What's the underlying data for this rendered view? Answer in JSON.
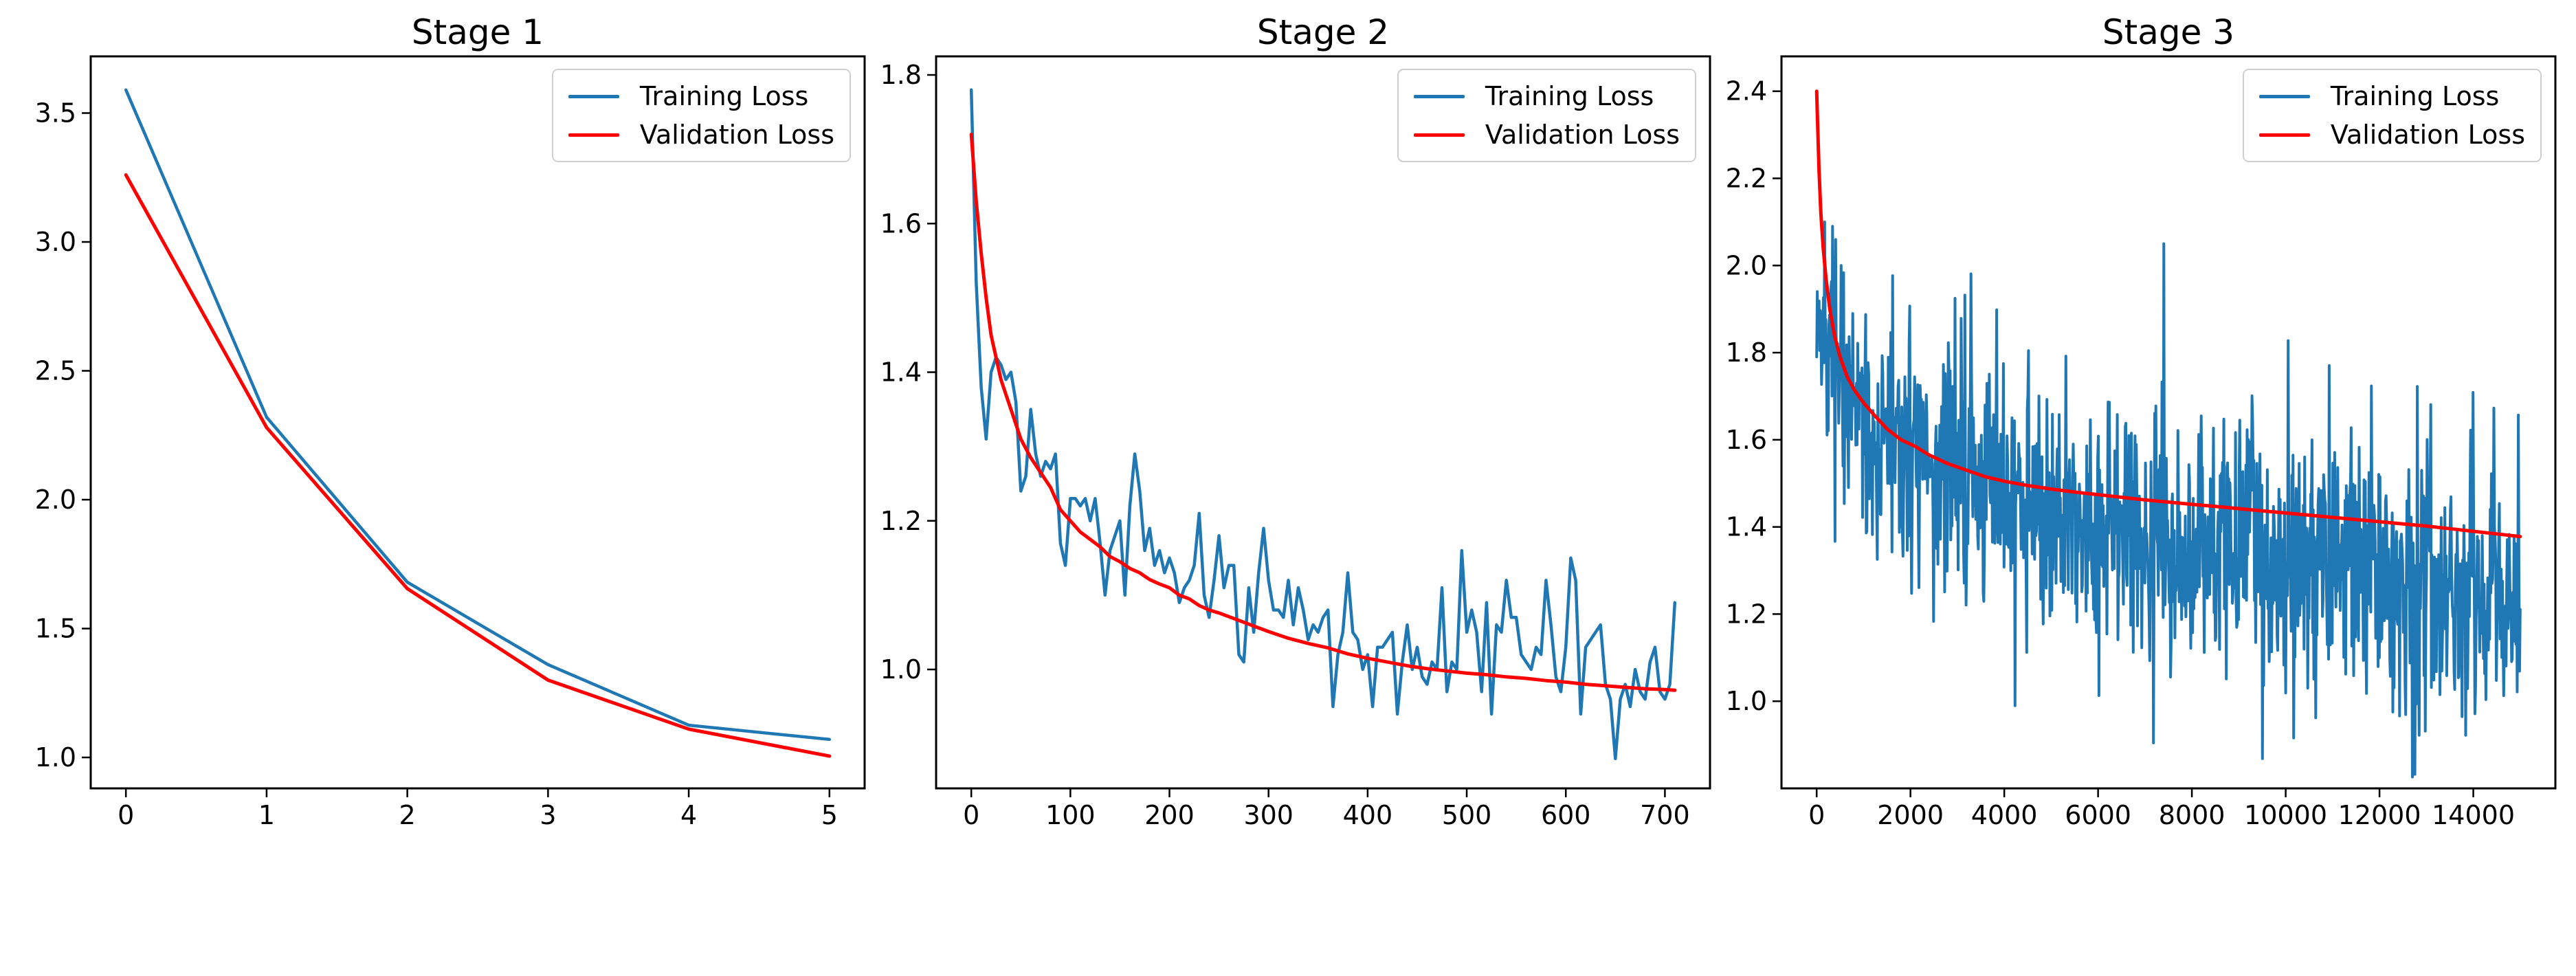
{
  "figure": {
    "background": "#ffffff",
    "text_color": "#000000",
    "spine_color": "#000000",
    "accent_blue": "#1f77b4",
    "accent_red": "#ff0000"
  },
  "chart_data": [
    {
      "type": "line",
      "title": "Stage 1",
      "xlabel": "",
      "ylabel": "",
      "grid": false,
      "legend_position": "upper right",
      "xlim": [
        -0.25,
        5.25
      ],
      "ylim": [
        0.88,
        3.72
      ],
      "xticks": [
        0,
        1,
        2,
        3,
        4,
        5
      ],
      "xtick_labels": [
        "0",
        "1",
        "2",
        "3",
        "4",
        "5"
      ],
      "yticks": [
        1.0,
        1.5,
        2.0,
        2.5,
        3.0,
        3.5
      ],
      "ytick_labels": [
        "1.0",
        "1.5",
        "2.0",
        "2.5",
        "3.0",
        "3.5"
      ],
      "series": [
        {
          "name": "Training Loss",
          "color": "#1f77b4",
          "width": 4.5,
          "data": {
            "kind": "points",
            "points": [
              [
                0,
                3.59
              ],
              [
                1,
                2.32
              ],
              [
                2,
                1.68
              ],
              [
                3,
                1.36
              ],
              [
                4,
                1.125
              ],
              [
                5,
                1.07
              ]
            ]
          }
        },
        {
          "name": "Validation Loss",
          "color": "#ff0000",
          "width": 5,
          "data": {
            "kind": "points",
            "points": [
              [
                0,
                3.26
              ],
              [
                1,
                2.28
              ],
              [
                2,
                1.655
              ],
              [
                3,
                1.3
              ],
              [
                4,
                1.11
              ],
              [
                5,
                1.005
              ]
            ]
          }
        }
      ]
    },
    {
      "type": "line",
      "title": "Stage 2",
      "xlabel": "",
      "ylabel": "",
      "grid": false,
      "legend_position": "upper right",
      "xlim": [
        -35.5,
        745.5
      ],
      "ylim": [
        0.84,
        1.825
      ],
      "xticks": [
        0,
        100,
        200,
        300,
        400,
        500,
        600,
        700
      ],
      "xtick_labels": [
        "0",
        "100",
        "200",
        "300",
        "400",
        "500",
        "600",
        "700"
      ],
      "yticks": [
        1.0,
        1.2,
        1.4,
        1.6,
        1.8
      ],
      "ytick_labels": [
        "1.0",
        "1.2",
        "1.4",
        "1.6",
        "1.8"
      ],
      "series": [
        {
          "name": "Training Loss",
          "color": "#1f77b4",
          "width": 4.5,
          "data": {
            "kind": "values",
            "x_start": 0,
            "x_step": 5,
            "values": [
              1.78,
              1.52,
              1.38,
              1.31,
              1.4,
              1.42,
              1.41,
              1.39,
              1.4,
              1.36,
              1.24,
              1.26,
              1.35,
              1.29,
              1.26,
              1.28,
              1.27,
              1.29,
              1.17,
              1.14,
              1.23,
              1.23,
              1.22,
              1.23,
              1.2,
              1.23,
              1.17,
              1.1,
              1.16,
              1.18,
              1.2,
              1.1,
              1.22,
              1.29,
              1.24,
              1.16,
              1.19,
              1.14,
              1.16,
              1.13,
              1.15,
              1.13,
              1.09,
              1.11,
              1.12,
              1.14,
              1.21,
              1.1,
              1.07,
              1.12,
              1.18,
              1.11,
              1.14,
              1.14,
              1.02,
              1.01,
              1.11,
              1.05,
              1.13,
              1.19,
              1.12,
              1.08,
              1.08,
              1.07,
              1.12,
              1.06,
              1.11,
              1.08,
              1.04,
              1.06,
              1.05,
              1.07,
              1.08,
              0.95,
              1.02,
              1.05,
              1.13,
              1.05,
              1.04,
              1.0,
              1.02,
              0.95,
              1.03,
              1.03,
              1.04,
              1.05,
              0.94,
              1.01,
              1.06,
              1.0,
              1.03,
              0.99,
              0.98,
              1.01,
              1.0,
              1.11,
              0.97,
              1.01,
              1.0,
              1.16,
              1.05,
              1.08,
              1.05,
              0.97,
              1.09,
              0.94,
              1.06,
              1.05,
              1.12,
              1.07,
              1.07,
              1.02,
              1.01,
              1.0,
              1.03,
              1.02,
              1.12,
              1.06,
              0.99,
              0.97,
              1.03,
              1.15,
              1.12,
              0.94,
              1.03,
              1.04,
              1.05,
              1.06,
              0.98,
              0.96,
              0.88,
              0.96,
              0.98,
              0.95,
              1.0,
              0.97,
              0.96,
              1.01,
              1.03,
              0.97,
              0.96,
              0.98,
              1.09
            ]
          }
        },
        {
          "name": "Validation Loss",
          "color": "#ff0000",
          "width": 5,
          "data": {
            "kind": "points",
            "points": [
              [
                0,
                1.72
              ],
              [
                5,
                1.63
              ],
              [
                10,
                1.56
              ],
              [
                15,
                1.5
              ],
              [
                20,
                1.45
              ],
              [
                25,
                1.42
              ],
              [
                30,
                1.39
              ],
              [
                35,
                1.37
              ],
              [
                40,
                1.35
              ],
              [
                45,
                1.33
              ],
              [
                50,
                1.31
              ],
              [
                60,
                1.285
              ],
              [
                70,
                1.265
              ],
              [
                80,
                1.245
              ],
              [
                90,
                1.215
              ],
              [
                100,
                1.2
              ],
              [
                110,
                1.185
              ],
              [
                120,
                1.175
              ],
              [
                130,
                1.165
              ],
              [
                140,
                1.152
              ],
              [
                150,
                1.145
              ],
              [
                160,
                1.136
              ],
              [
                170,
                1.13
              ],
              [
                180,
                1.121
              ],
              [
                190,
                1.115
              ],
              [
                200,
                1.11
              ],
              [
                210,
                1.1
              ],
              [
                220,
                1.095
              ],
              [
                230,
                1.086
              ],
              [
                240,
                1.08
              ],
              [
                250,
                1.076
              ],
              [
                260,
                1.071
              ],
              [
                270,
                1.066
              ],
              [
                280,
                1.061
              ],
              [
                290,
                1.056
              ],
              [
                300,
                1.051
              ],
              [
                320,
                1.042
              ],
              [
                340,
                1.035
              ],
              [
                360,
                1.029
              ],
              [
                380,
                1.021
              ],
              [
                400,
                1.015
              ],
              [
                420,
                1.01
              ],
              [
                440,
                1.005
              ],
              [
                460,
                1.001
              ],
              [
                480,
                0.998
              ],
              [
                500,
                0.995
              ],
              [
                520,
                0.993
              ],
              [
                540,
                0.99
              ],
              [
                560,
                0.988
              ],
              [
                580,
                0.985
              ],
              [
                600,
                0.983
              ],
              [
                620,
                0.98
              ],
              [
                640,
                0.978
              ],
              [
                660,
                0.976
              ],
              [
                680,
                0.974
              ],
              [
                700,
                0.973
              ],
              [
                710,
                0.972
              ]
            ]
          }
        }
      ]
    },
    {
      "type": "line",
      "title": "Stage 3",
      "xlabel": "",
      "ylabel": "",
      "grid": false,
      "legend_position": "upper right",
      "xlim": [
        -750,
        15750
      ],
      "ylim": [
        0.8,
        2.48
      ],
      "xticks": [
        0,
        2000,
        4000,
        6000,
        8000,
        10000,
        12000,
        14000
      ],
      "xtick_labels": [
        "0",
        "2000",
        "4000",
        "6000",
        "8000",
        "10000",
        "12000",
        "14000"
      ],
      "yticks": [
        1.0,
        1.2,
        1.4,
        1.6,
        1.8,
        2.0,
        2.2,
        2.4
      ],
      "ytick_labels": [
        "1.0",
        "1.2",
        "1.4",
        "1.6",
        "1.8",
        "2.0",
        "2.2",
        "2.4"
      ],
      "series": [
        {
          "name": "Training Loss",
          "color": "#1f77b4",
          "width": 4,
          "data": {
            "kind": "noisy",
            "n": 1150,
            "x_min": 0,
            "x_max": 15000,
            "seed": 7,
            "trend": [
              [
                0,
                1.92
              ],
              [
                100,
                1.83
              ],
              [
                250,
                1.76
              ],
              [
                500,
                1.7
              ],
              [
                800,
                1.655
              ],
              [
                1200,
                1.615
              ],
              [
                1700,
                1.575
              ],
              [
                2200,
                1.545
              ],
              [
                2800,
                1.52
              ],
              [
                3500,
                1.49
              ],
              [
                4300,
                1.465
              ],
              [
                5200,
                1.44
              ],
              [
                6200,
                1.415
              ],
              [
                7200,
                1.395
              ],
              [
                8200,
                1.375
              ],
              [
                9200,
                1.355
              ],
              [
                10200,
                1.33
              ],
              [
                11200,
                1.305
              ],
              [
                12200,
                1.285
              ],
              [
                13200,
                1.26
              ],
              [
                14200,
                1.24
              ],
              [
                15000,
                1.23
              ]
            ],
            "amp": [
              [
                0,
                0.14
              ],
              [
                200,
                0.22
              ],
              [
                600,
                0.27
              ],
              [
                1200,
                0.3
              ],
              [
                2500,
                0.32
              ],
              [
                5000,
                0.33
              ],
              [
                9000,
                0.33
              ],
              [
                12000,
                0.32
              ],
              [
                15000,
                0.31
              ]
            ],
            "spike_up_prob": 0.02,
            "spike_down_prob": 0.015,
            "clamp": [
              0.82,
              2.45
            ],
            "spikes": [
              [
                170,
                2.1
              ],
              [
                340,
                2.09
              ],
              [
                520,
                2.0
              ],
              [
                7400,
                2.05
              ]
            ]
          }
        },
        {
          "name": "Validation Loss",
          "color": "#ff0000",
          "width": 5,
          "data": {
            "kind": "points",
            "points": [
              [
                0,
                2.4
              ],
              [
                20,
                2.33
              ],
              [
                50,
                2.22
              ],
              [
                90,
                2.12
              ],
              [
                140,
                2.04
              ],
              [
                200,
                1.97
              ],
              [
                280,
                1.9
              ],
              [
                380,
                1.84
              ],
              [
                500,
                1.79
              ],
              [
                650,
                1.745
              ],
              [
                800,
                1.715
              ],
              [
                1000,
                1.685
              ],
              [
                1200,
                1.66
              ],
              [
                1500,
                1.625
              ],
              [
                1800,
                1.6
              ],
              [
                2100,
                1.585
              ],
              [
                2400,
                1.565
              ],
              [
                2800,
                1.545
              ],
              [
                3200,
                1.53
              ],
              [
                3600,
                1.515
              ],
              [
                4000,
                1.505
              ],
              [
                4500,
                1.495
              ],
              [
                5000,
                1.487
              ],
              [
                5500,
                1.48
              ],
              [
                6000,
                1.474
              ],
              [
                6500,
                1.468
              ],
              [
                7000,
                1.462
              ],
              [
                7500,
                1.457
              ],
              [
                8000,
                1.452
              ],
              [
                8500,
                1.447
              ],
              [
                9000,
                1.442
              ],
              [
                9500,
                1.437
              ],
              [
                10000,
                1.432
              ],
              [
                10500,
                1.427
              ],
              [
                11000,
                1.422
              ],
              [
                11500,
                1.417
              ],
              [
                12000,
                1.412
              ],
              [
                12500,
                1.407
              ],
              [
                13000,
                1.402
              ],
              [
                13500,
                1.396
              ],
              [
                14000,
                1.39
              ],
              [
                14500,
                1.384
              ],
              [
                15000,
                1.378
              ]
            ]
          }
        }
      ]
    }
  ]
}
